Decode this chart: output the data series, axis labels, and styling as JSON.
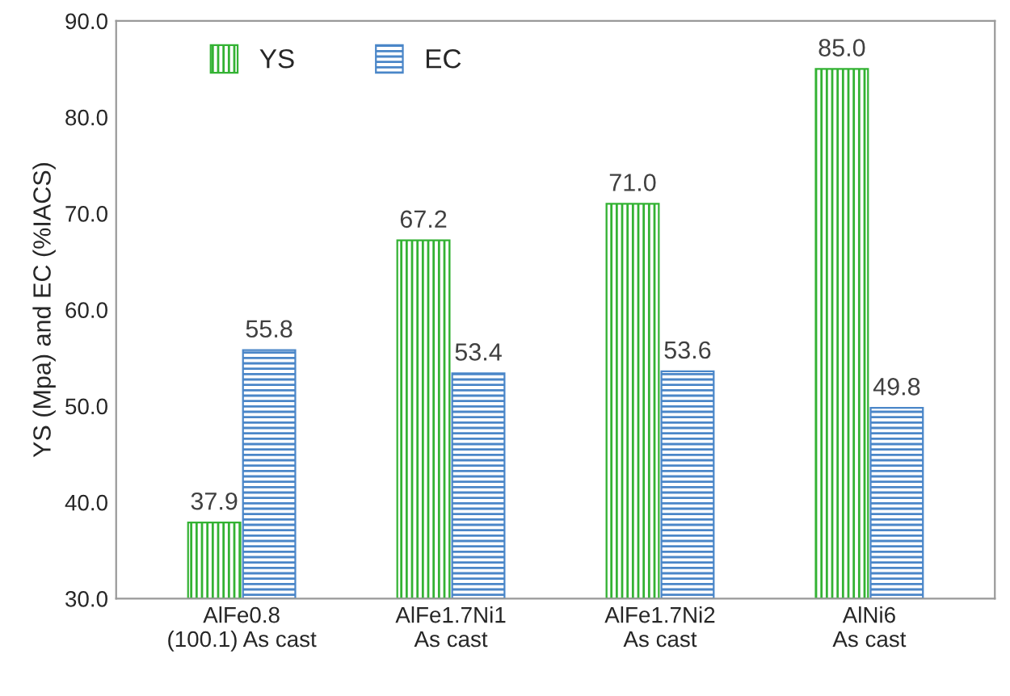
{
  "chart_data": {
    "type": "bar",
    "ylabel": "YS (Mpa) and EC (%IACS)",
    "categories": [
      "AlFe0.8\n(100.1) As cast",
      "AlFe1.7Ni1\nAs cast",
      "AlFe1.7Ni2\nAs cast",
      "AlNi6\nAs cast"
    ],
    "series": [
      {
        "name": "YS",
        "color": "#33b233",
        "values": [
          37.9,
          67.2,
          71.0,
          85.0
        ],
        "value_labels": [
          "37.9",
          "67.2",
          "71.0",
          "85.0"
        ]
      },
      {
        "name": "EC",
        "color": "#4a86c8",
        "values": [
          55.8,
          53.4,
          53.6,
          49.8
        ],
        "value_labels": [
          "55.8",
          "53.4",
          "53.6",
          "49.8"
        ]
      }
    ],
    "ylim": [
      30,
      90
    ],
    "yticks": [
      {
        "value": 30,
        "label": "30.0"
      },
      {
        "value": 40,
        "label": "40.0"
      },
      {
        "value": 50,
        "label": "50.0"
      },
      {
        "value": 60,
        "label": "60.0"
      },
      {
        "value": 70,
        "label": "70.0"
      },
      {
        "value": 80,
        "label": "80.0"
      },
      {
        "value": 90,
        "label": "90.0"
      }
    ],
    "legend": "top left",
    "grid": false
  }
}
